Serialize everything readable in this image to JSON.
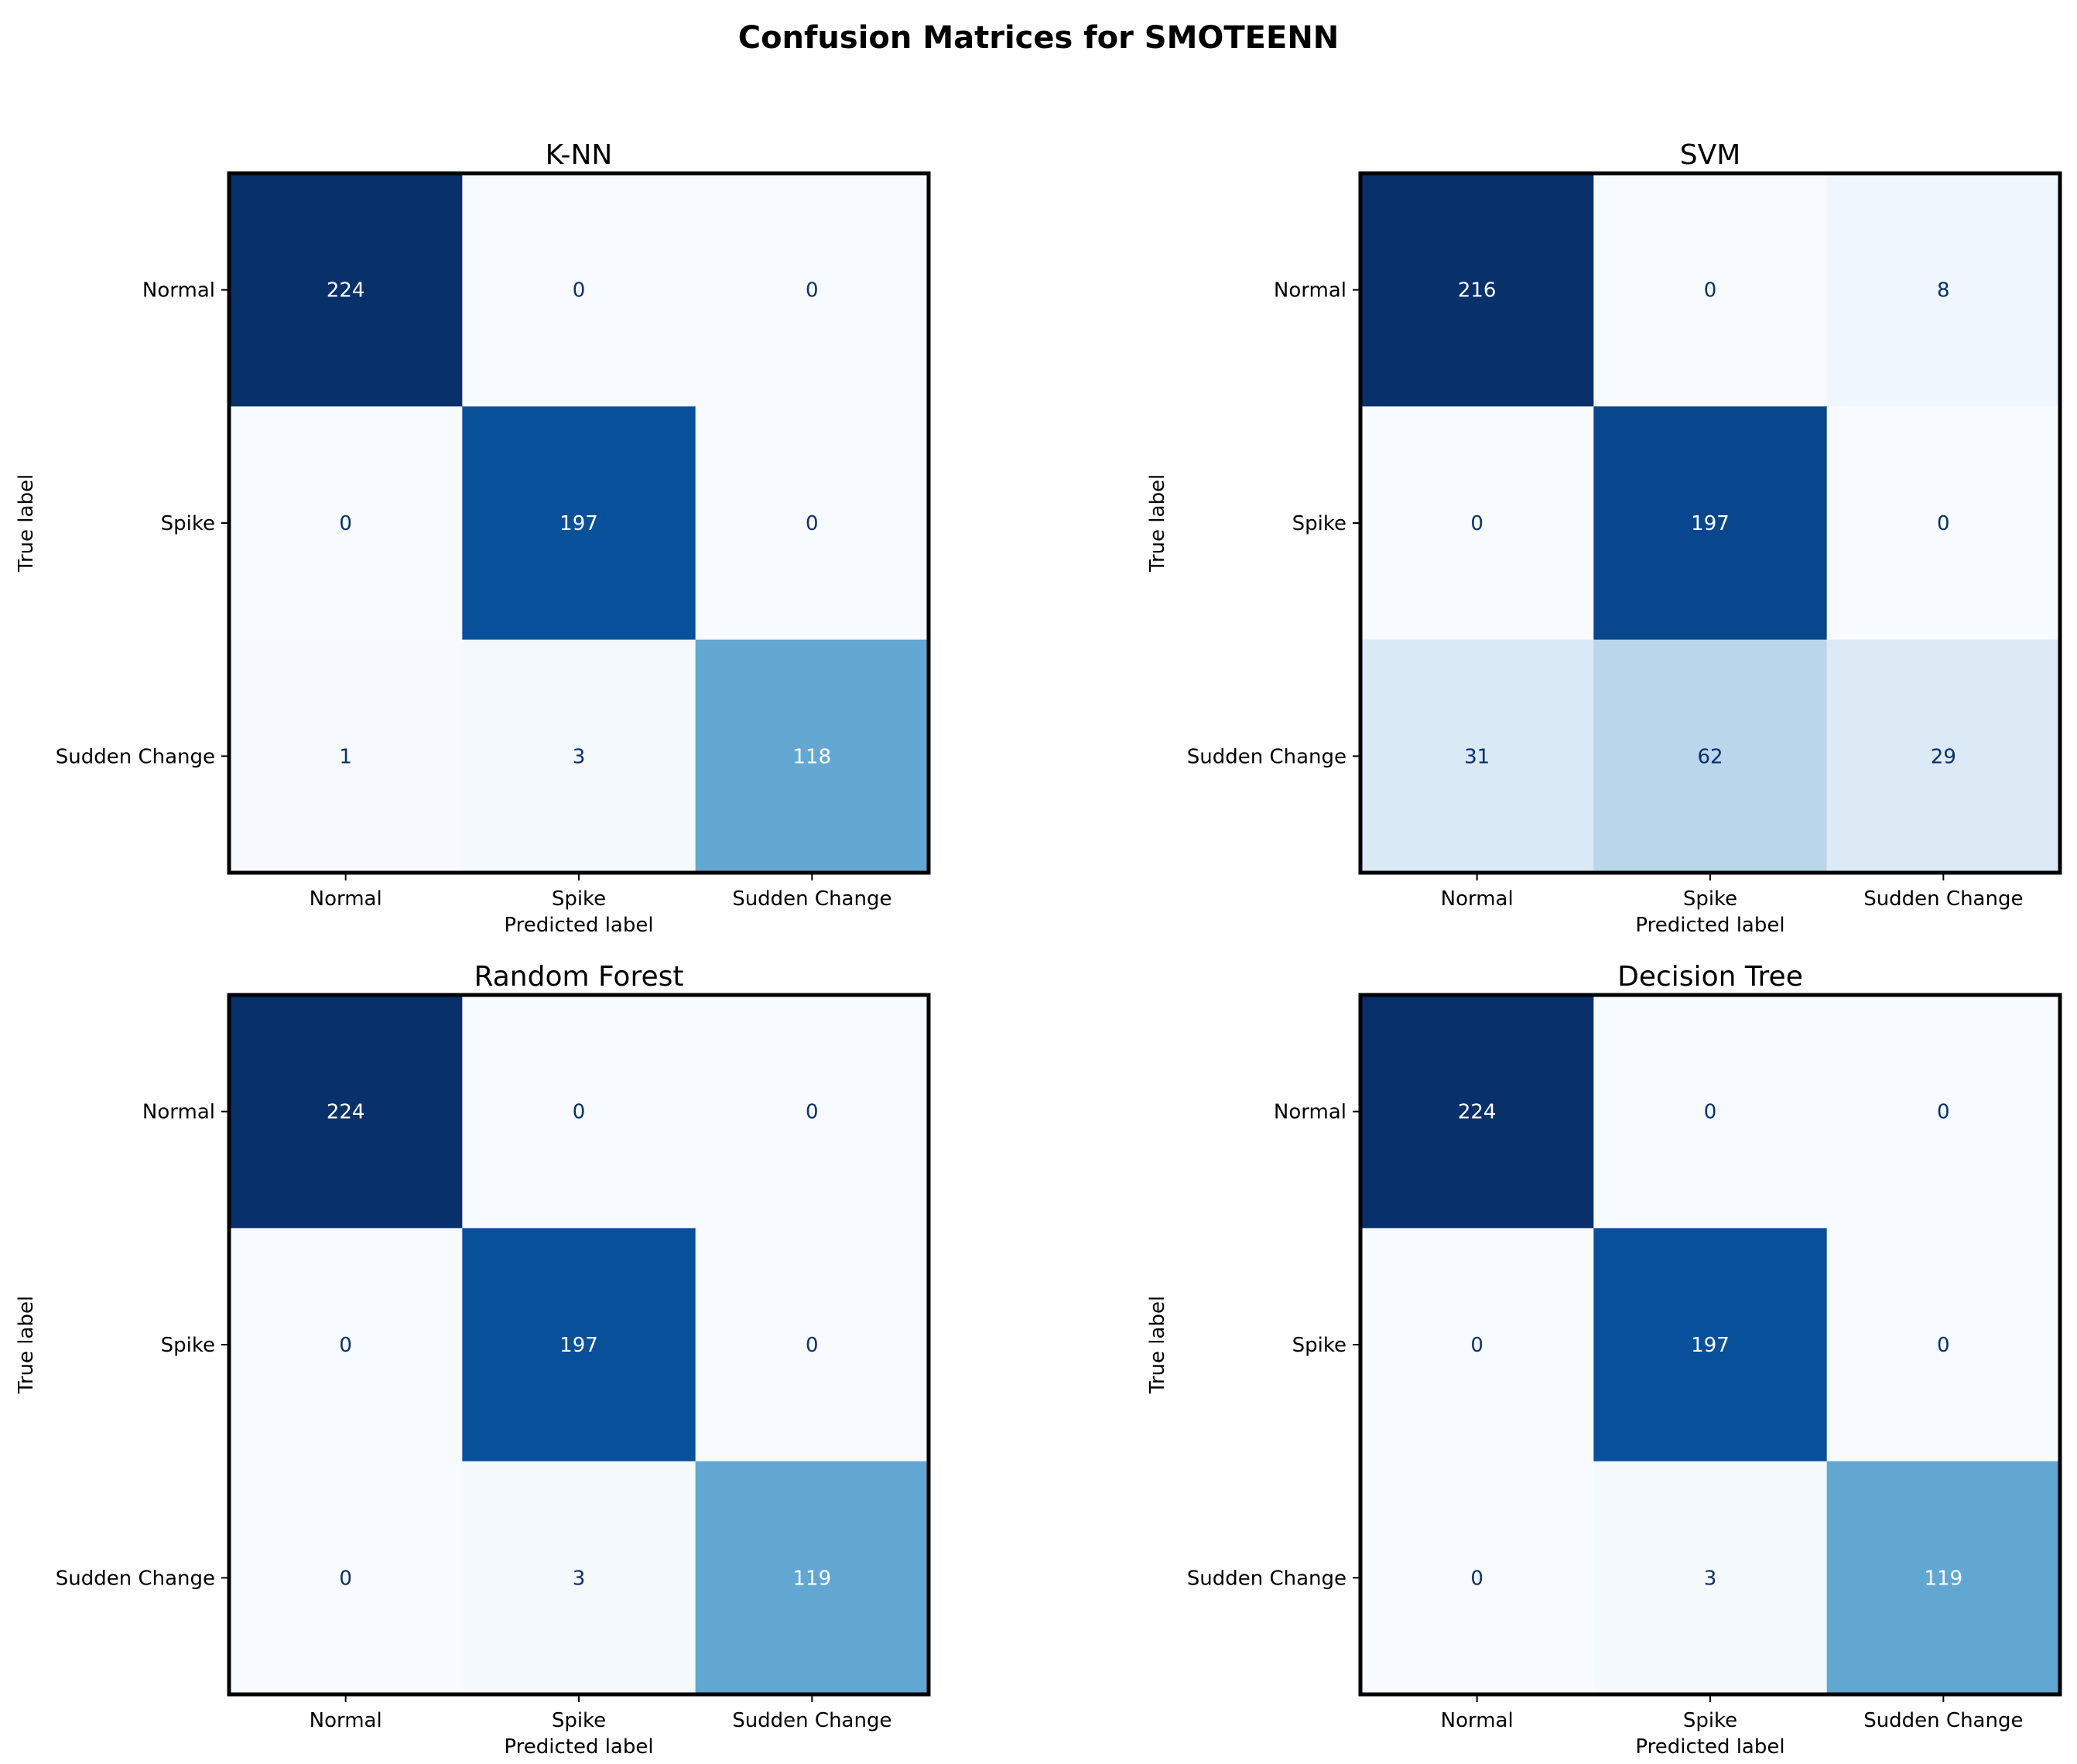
{
  "figure_title": "Confusion Matrices for SMOTEENN",
  "chart_data": [
    {
      "type": "heatmap",
      "title": "K-NN",
      "xlabel": "Predicted label",
      "ylabel": "True label",
      "x_categories": [
        "Normal",
        "Spike",
        "Sudden Change"
      ],
      "y_categories": [
        "Normal",
        "Spike",
        "Sudden Change"
      ],
      "matrix": [
        [
          224,
          0,
          0
        ],
        [
          0,
          197,
          0
        ],
        [
          1,
          3,
          118
        ]
      ],
      "colormap": "Blues"
    },
    {
      "type": "heatmap",
      "title": "SVM",
      "xlabel": "Predicted label",
      "ylabel": "True label",
      "x_categories": [
        "Normal",
        "Spike",
        "Sudden Change"
      ],
      "y_categories": [
        "Normal",
        "Spike",
        "Sudden Change"
      ],
      "matrix": [
        [
          216,
          0,
          8
        ],
        [
          0,
          197,
          0
        ],
        [
          31,
          62,
          29
        ]
      ],
      "colormap": "Blues"
    },
    {
      "type": "heatmap",
      "title": "Random Forest",
      "xlabel": "Predicted label",
      "ylabel": "True label",
      "x_categories": [
        "Normal",
        "Spike",
        "Sudden Change"
      ],
      "y_categories": [
        "Normal",
        "Spike",
        "Sudden Change"
      ],
      "matrix": [
        [
          224,
          0,
          0
        ],
        [
          0,
          197,
          0
        ],
        [
          0,
          3,
          119
        ]
      ],
      "colormap": "Blues"
    },
    {
      "type": "heatmap",
      "title": "Decision Tree",
      "xlabel": "Predicted label",
      "ylabel": "True label",
      "x_categories": [
        "Normal",
        "Spike",
        "Sudden Change"
      ],
      "y_categories": [
        "Normal",
        "Spike",
        "Sudden Change"
      ],
      "matrix": [
        [
          224,
          0,
          0
        ],
        [
          0,
          197,
          0
        ],
        [
          0,
          3,
          119
        ]
      ],
      "colormap": "Blues"
    }
  ]
}
